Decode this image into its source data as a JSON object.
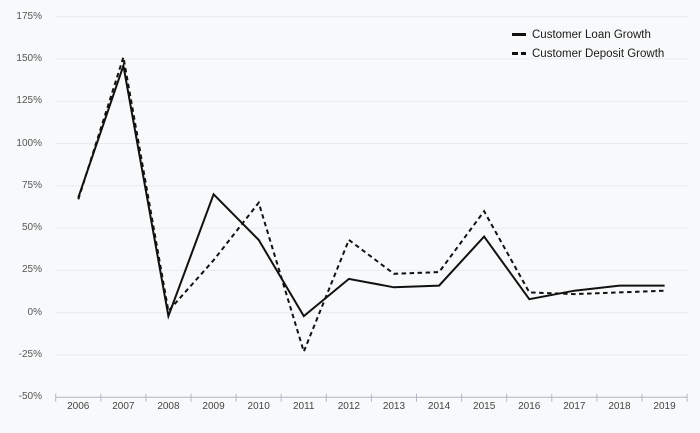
{
  "chart_data": {
    "type": "line",
    "title": "",
    "categories": [
      "2006",
      "2007",
      "2008",
      "2009",
      "2010",
      "2011",
      "2012",
      "2013",
      "2014",
      "2015",
      "2016",
      "2017",
      "2018",
      "2019"
    ],
    "series": [
      {
        "name": "Customer Loan Growth",
        "line_style": "solid",
        "values": [
          68,
          146,
          -2,
          70,
          43,
          -2,
          20,
          15,
          16,
          45,
          8,
          13,
          16,
          16
        ]
      },
      {
        "name": "Customer Deposit Growth",
        "line_style": "dashed",
        "values": [
          67,
          151,
          1,
          31,
          65,
          -23,
          43,
          23,
          24,
          60,
          12,
          11,
          12,
          13
        ]
      }
    ],
    "unit": "%",
    "y_ticks": [
      175,
      150,
      125,
      100,
      75,
      50,
      25,
      0,
      -25,
      -50
    ],
    "y_tick_labels": [
      "175%",
      "150%",
      "125%",
      "100%",
      "75%",
      "50%",
      "25%",
      "0%",
      "-25%",
      "-50%"
    ],
    "ylim": [
      -50,
      175
    ],
    "grid": true,
    "legend_position": "top-right",
    "colors": {
      "line": "#111111",
      "grid": "#e9eaec",
      "axis": "#b2b9c6",
      "background": "#f8f9fa",
      "y_label_text": "#555555",
      "x_label_text": "#444444",
      "legend_text": "#1a1a1a"
    }
  }
}
